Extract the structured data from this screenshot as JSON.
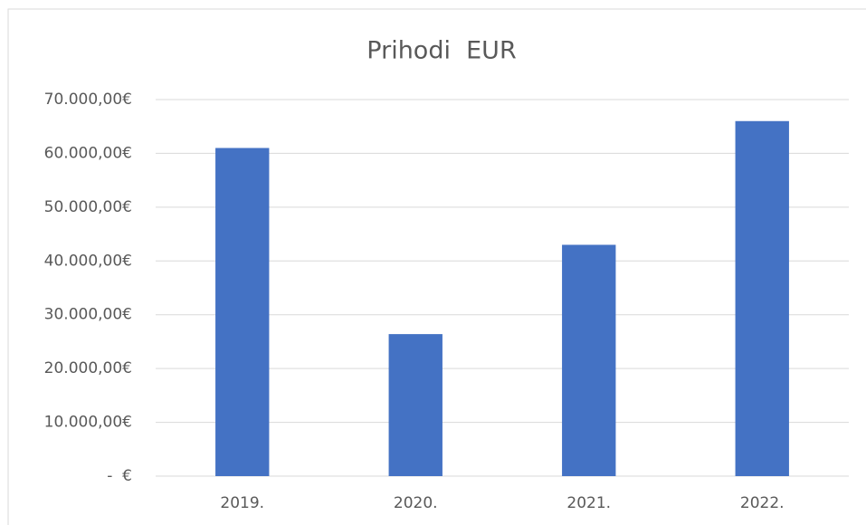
{
  "chart_data": {
    "type": "bar",
    "title": "Prihodi  EUR",
    "categories": [
      "2019.",
      "2020.",
      "2021.",
      "2022."
    ],
    "values": [
      61000,
      26400,
      43000,
      66000
    ],
    "color": "#4472c4",
    "ylim": [
      0,
      70000
    ],
    "yticks": [
      {
        "value": 0,
        "label": "-  €"
      },
      {
        "value": 10000,
        "label": "10.000,00€"
      },
      {
        "value": 20000,
        "label": "20.000,00€"
      },
      {
        "value": 30000,
        "label": "30.000,00€"
      },
      {
        "value": 40000,
        "label": "40.000,00€"
      },
      {
        "value": 50000,
        "label": "50.000,00€"
      },
      {
        "value": 60000,
        "label": "60.000,00€"
      },
      {
        "value": 70000,
        "label": "70.000,00€"
      }
    ],
    "grid": true
  }
}
